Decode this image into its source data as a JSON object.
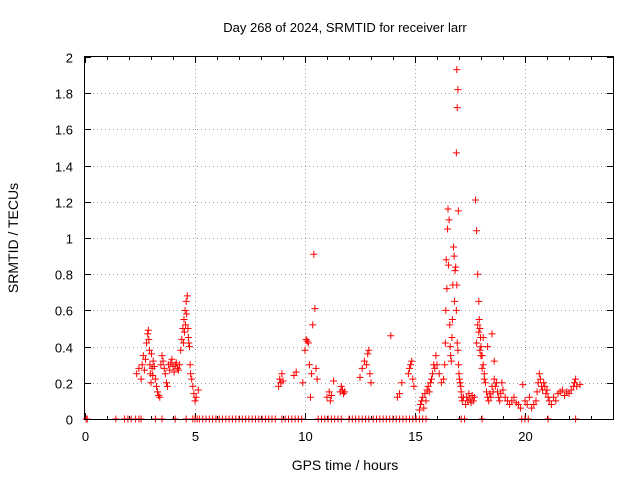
{
  "chart_data": {
    "type": "scatter",
    "title": "Day 268 of 2024, SRMTID for receiver larr",
    "xlabel": "GPS time / hours",
    "ylabel": "SRMTID / TECUs",
    "xlim": [
      0,
      24
    ],
    "ylim": [
      0,
      2
    ],
    "xticks": [
      "0",
      "5",
      "10",
      "15",
      "20"
    ],
    "yticks": [
      "0",
      "0.2",
      "0.4",
      "0.6",
      "0.8",
      "1",
      "1.2",
      "1.4",
      "1.6",
      "1.8",
      "2"
    ],
    "grid": true,
    "marker": "plus",
    "color": "#ff0000",
    "series": [
      {
        "name": "SRMTID",
        "x": [
          0.05,
          0.1,
          1.4,
          1.8,
          1.95,
          2.1,
          2.3,
          2.45,
          2.55,
          3.2,
          3.5,
          4.1,
          4.6,
          4.9,
          5.0,
          5.1,
          5.2,
          5.35,
          5.5,
          5.65,
          5.8,
          5.95,
          6.1,
          6.25,
          6.4,
          6.55,
          6.7,
          6.85,
          7.0,
          7.15,
          7.3,
          7.45,
          7.6,
          7.75,
          7.9,
          8.05,
          8.2,
          8.35,
          8.5,
          8.65,
          8.95,
          9.1,
          9.25,
          9.4,
          9.55,
          9.7,
          9.85,
          10.6,
          10.75,
          10.9,
          11.05,
          11.2,
          11.35,
          11.5,
          11.65,
          12.0,
          12.15,
          12.3,
          12.45,
          12.6,
          12.75,
          12.9,
          13.1,
          13.25,
          13.4,
          13.55,
          13.7,
          13.85,
          14.0,
          14.15,
          14.3,
          14.45,
          14.6,
          14.75,
          14.9,
          15.05,
          15.2,
          15.35,
          15.5,
          17.1,
          17.25,
          18.05,
          19.85,
          20.0,
          20.15,
          21.05,
          22.3,
          2.35,
          2.45,
          2.55,
          2.6,
          2.65,
          2.7,
          2.75,
          2.8,
          2.85,
          2.88,
          2.9,
          2.93,
          2.95,
          2.97,
          3.0,
          3.02,
          3.05,
          3.08,
          3.1,
          3.15,
          3.2,
          3.25,
          3.3,
          3.35,
          3.4,
          3.45,
          3.5,
          3.55,
          3.6,
          3.65,
          3.7,
          3.75,
          3.8,
          3.85,
          3.9,
          3.95,
          4.0,
          4.05,
          4.1,
          4.15,
          4.2,
          4.25,
          4.3,
          4.35,
          4.4,
          4.45,
          4.48,
          4.5,
          4.52,
          4.55,
          4.57,
          4.6,
          4.62,
          4.65,
          4.68,
          4.7,
          4.72,
          4.75,
          4.78,
          4.8,
          4.85,
          4.9,
          4.95,
          5.0,
          5.05,
          5.15,
          8.8,
          8.85,
          8.9,
          8.95,
          9.0,
          9.5,
          9.6,
          9.9,
          10.0,
          10.05,
          10.1,
          10.15,
          10.2,
          10.25,
          10.3,
          10.35,
          10.4,
          10.45,
          10.5,
          10.55,
          11.0,
          11.1,
          11.15,
          11.2,
          11.3,
          11.6,
          11.65,
          11.7,
          11.75,
          11.8,
          12.5,
          12.6,
          12.7,
          12.8,
          12.85,
          12.9,
          12.95,
          13.0,
          13.9,
          14.2,
          14.3,
          14.4,
          14.7,
          14.75,
          14.8,
          14.85,
          14.9,
          14.95,
          15.2,
          15.25,
          15.3,
          15.35,
          15.4,
          15.45,
          15.5,
          15.55,
          15.6,
          15.65,
          15.7,
          15.75,
          15.8,
          15.85,
          15.9,
          15.95,
          16.0,
          16.1,
          16.2,
          16.3,
          16.35,
          16.38,
          16.4,
          16.42,
          16.45,
          16.48,
          16.5,
          16.52,
          16.55,
          16.58,
          16.6,
          16.62,
          16.65,
          16.68,
          16.7,
          16.72,
          16.75,
          16.78,
          16.8,
          16.82,
          16.85,
          16.88,
          16.9,
          16.92,
          16.95,
          16.98,
          17.0,
          17.02,
          17.05,
          17.08,
          17.1,
          17.12,
          17.15,
          17.2,
          16.88,
          16.92,
          16.95,
          16.9,
          16.97,
          17.3,
          17.35,
          17.4,
          17.45,
          17.5,
          17.55,
          17.6,
          17.65,
          17.7,
          17.75,
          17.8,
          17.85,
          17.9,
          17.92,
          17.95,
          17.98,
          18.0,
          18.05,
          18.1,
          18.15,
          18.2,
          18.25,
          18.3,
          18.35,
          18.4,
          18.45,
          18.5,
          18.55,
          18.6,
          18.65,
          18.7,
          18.75,
          18.8,
          18.85,
          18.9,
          18.95,
          19.0,
          17.8,
          17.85,
          17.9,
          17.95,
          18.0,
          18.05,
          18.1,
          18.15,
          18.3,
          18.5,
          18.6,
          19.1,
          19.2,
          19.3,
          19.4,
          19.5,
          19.6,
          19.7,
          19.8,
          19.9,
          20.0,
          20.1,
          20.2,
          20.3,
          20.4,
          20.5,
          20.55,
          20.6,
          20.65,
          20.7,
          20.75,
          20.8,
          20.85,
          20.9,
          20.95,
          21.0,
          21.05,
          21.1,
          21.2,
          21.3,
          21.4,
          21.5,
          21.6,
          21.7,
          21.8,
          21.9,
          22.0,
          22.1,
          22.2,
          22.25,
          22.3,
          22.35,
          22.5
        ],
        "y": [
          0,
          0,
          0,
          0,
          0,
          0,
          0,
          0,
          0,
          0,
          0,
          0,
          0,
          0,
          0,
          0,
          0,
          0,
          0,
          0,
          0,
          0,
          0,
          0,
          0,
          0,
          0,
          0,
          0,
          0,
          0,
          0,
          0,
          0,
          0,
          0,
          0,
          0,
          0,
          0,
          0,
          0,
          0,
          0,
          0,
          0,
          0,
          0,
          0,
          0,
          0,
          0,
          0,
          0,
          0,
          0,
          0,
          0,
          0,
          0,
          0,
          0,
          0,
          0,
          0,
          0,
          0,
          0,
          0,
          0,
          0,
          0,
          0,
          0,
          0,
          0,
          0,
          0,
          0,
          0,
          0,
          0,
          0,
          0,
          0,
          0,
          0,
          0.25,
          0.28,
          0.22,
          0.3,
          0.35,
          0.27,
          0.33,
          0.42,
          0.47,
          0.49,
          0.44,
          0.38,
          0.3,
          0.25,
          0.2,
          0.36,
          0.28,
          0.24,
          0.32,
          0.29,
          0.22,
          0.18,
          0.15,
          0.13,
          0.12,
          0.3,
          0.35,
          0.32,
          0.28,
          0.25,
          0.2,
          0.18,
          0.3,
          0.27,
          0.31,
          0.33,
          0.29,
          0.26,
          0.3,
          0.31,
          0.28,
          0.27,
          0.3,
          0.38,
          0.44,
          0.5,
          0.42,
          0.55,
          0.48,
          0.6,
          0.52,
          0.65,
          0.58,
          0.68,
          0.5,
          0.45,
          0.42,
          0.4,
          0.3,
          0.25,
          0.22,
          0.18,
          0.14,
          0.1,
          0.12,
          0.16,
          0.18,
          0.22,
          0.2,
          0.25,
          0.21,
          0.24,
          0.26,
          0.2,
          0.38,
          0.44,
          0.43,
          0.42,
          0.3,
          0.12,
          0.25,
          0.52,
          0.91,
          0.61,
          0.28,
          0.22,
          0.12,
          0.15,
          0.1,
          0.13,
          0.21,
          0.15,
          0.18,
          0.16,
          0.14,
          0.15,
          0.23,
          0.28,
          0.32,
          0.3,
          0.36,
          0.38,
          0.25,
          0.2,
          0.46,
          0.12,
          0.14,
          0.2,
          0.25,
          0.28,
          0.3,
          0.32,
          0.22,
          0.18,
          0.05,
          0.08,
          0.1,
          0.12,
          0.06,
          0.14,
          0.1,
          0.16,
          0.18,
          0.15,
          0.2,
          0.22,
          0.25,
          0.3,
          0.28,
          0.35,
          0.3,
          0.25,
          0.2,
          0.22,
          0.3,
          0.42,
          0.6,
          0.88,
          0.72,
          1.05,
          1.16,
          0.85,
          1.1,
          0.52,
          0.4,
          0.35,
          0.32,
          0.45,
          0.55,
          0.74,
          0.95,
          0.9,
          0.65,
          0.82,
          0.84,
          0.6,
          0.74,
          0.42,
          0.38,
          0.3,
          0.25,
          0.22,
          0.2,
          0.18,
          0.15,
          0.12,
          0.1,
          0.12,
          1.47,
          1.72,
          1.82,
          1.93,
          1.15,
          0.08,
          0.12,
          0.1,
          0.14,
          0.11,
          0.09,
          0.13,
          0.1,
          0.12,
          1.21,
          1.04,
          0.8,
          0.65,
          0.55,
          0.5,
          0.45,
          0.4,
          0.35,
          0.3,
          0.25,
          0.2,
          0.15,
          0.12,
          0.1,
          0.14,
          0.12,
          0.18,
          0.15,
          0.22,
          0.18,
          0.2,
          0.15,
          0.12,
          0.1,
          0.14,
          0.2,
          0.16,
          0.42,
          0.52,
          0.48,
          0.38,
          0.35,
          0.28,
          0.45,
          0.22,
          0.4,
          0.47,
          0.32,
          0.12,
          0.1,
          0.08,
          0.1,
          0.12,
          0.09,
          0.08,
          0.06,
          0.19,
          0.1,
          0.08,
          0.12,
          0.06,
          0.08,
          0.1,
          0.15,
          0.2,
          0.25,
          0.22,
          0.18,
          0.16,
          0.2,
          0.18,
          0.14,
          0.16,
          0.12,
          0.1,
          0.08,
          0.12,
          0.1,
          0.14,
          0.15,
          0.16,
          0.13,
          0.15,
          0.14,
          0.16,
          0.18,
          0.2,
          0.22,
          0.18,
          0.19
        ]
      }
    ]
  }
}
